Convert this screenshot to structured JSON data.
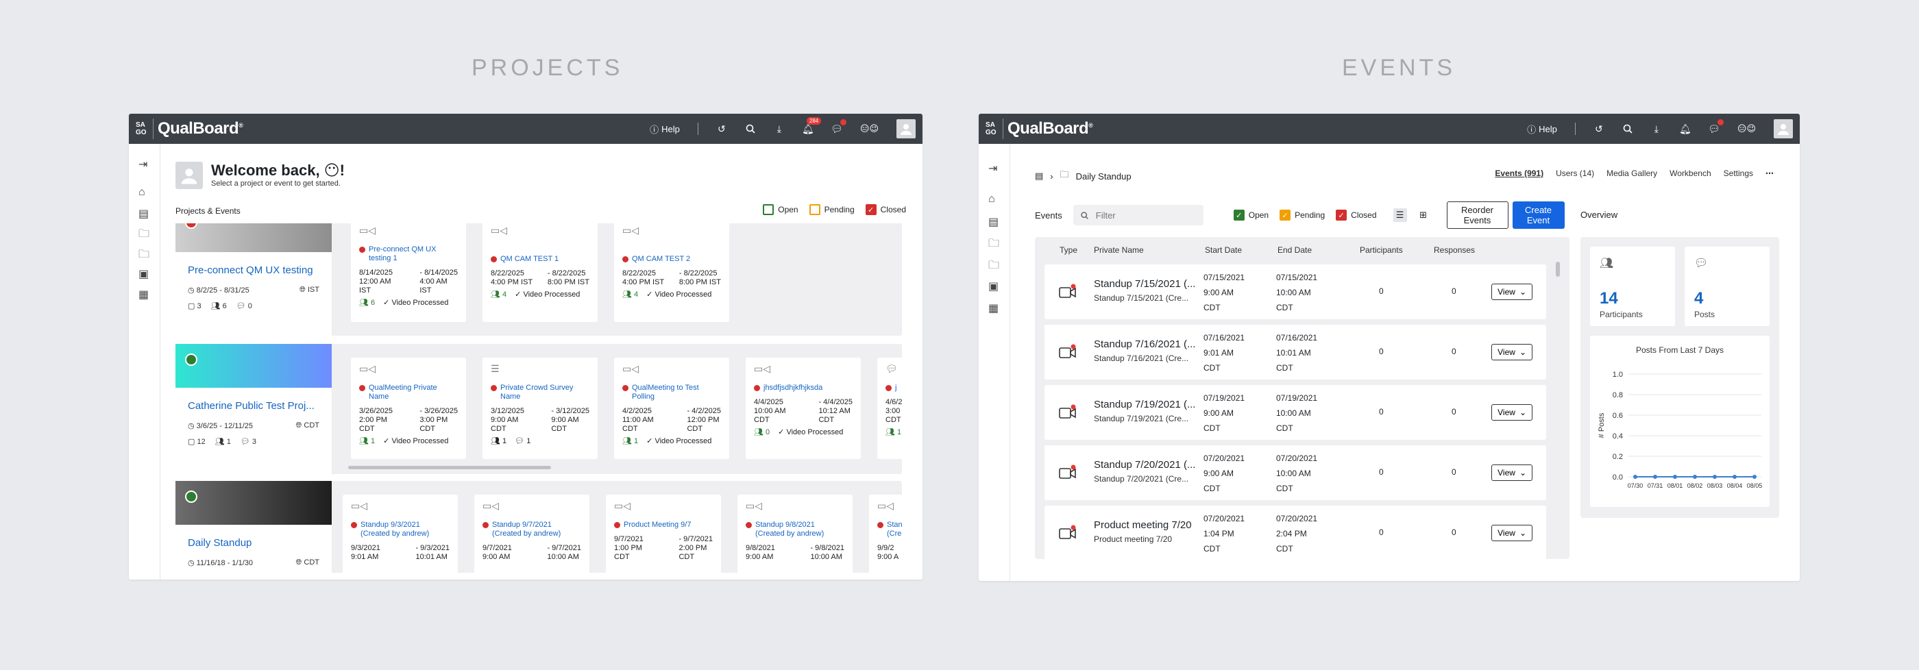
{
  "sections": {
    "projects": "PROJECTS",
    "events": "EVENTS"
  },
  "app": {
    "logo_small": [
      "SA",
      "GO"
    ],
    "logo": "QualBoard",
    "help": "Help",
    "notif_count": "284",
    "emojis": "😑😉"
  },
  "projects_page": {
    "welcome": "Welcome back, 😶!",
    "subtitle": "Select a project or event to get started.",
    "section_label": "Projects & Events",
    "legend": {
      "open": "Open",
      "pending": "Pending",
      "closed": "Closed"
    },
    "projects": [
      {
        "name": "Pre-connect QM UX testing",
        "dates": "8/2/25 - 8/31/25",
        "tz": "IST",
        "counts": [
          "3",
          "6",
          "0"
        ],
        "events": [
          {
            "title": "Pre-connect QM UX testing 1",
            "start": [
              "8/14/2025",
              "12:00 AM",
              "IST"
            ],
            "end": [
              "- 8/14/2025",
              "4:00 AM",
              "IST"
            ],
            "count": "6",
            "status": "Video Processed"
          },
          {
            "title": "QM CAM TEST 1",
            "start": [
              "8/22/2025",
              "4:00 PM IST"
            ],
            "end": [
              "- 8/22/2025",
              "8:00 PM IST"
            ],
            "count": "4",
            "status": "Video Processed"
          },
          {
            "title": "QM CAM TEST 2",
            "start": [
              "8/22/2025",
              "4:00 PM IST"
            ],
            "end": [
              "- 8/22/2025",
              "8:00 PM IST"
            ],
            "count": "4",
            "status": "Video Processed"
          }
        ]
      },
      {
        "name": "Catherine Public Test Proj...",
        "dates": "3/6/25 - 12/11/25",
        "tz": "CDT",
        "counts": [
          "12",
          "1",
          "3"
        ],
        "events": [
          {
            "title": "QualMeeting Private Name",
            "start": [
              "3/26/2025",
              "2:00 PM",
              "CDT"
            ],
            "end": [
              "- 3/26/2025",
              "3:00 PM",
              "CDT"
            ],
            "count": "1",
            "status": "Video Processed"
          },
          {
            "title": "Private Crowd Survey Name",
            "start": [
              "3/12/2025",
              "9:00 AM",
              "CDT"
            ],
            "end": [
              "- 3/12/2025",
              "9:00 AM",
              "CDT"
            ],
            "count": "1",
            "count2": "1",
            "status": ""
          },
          {
            "title": "QualMeeting to Test Polling",
            "start": [
              "4/2/2025",
              "11:00 AM",
              "CDT"
            ],
            "end": [
              "- 4/2/2025",
              "12:00 PM",
              "CDT"
            ],
            "count": "1",
            "status": "Video Processed"
          },
          {
            "title": "jhsdfjsdhjkfhjksda",
            "start": [
              "4/4/2025",
              "10:00 AM",
              "CDT"
            ],
            "end": [
              "- 4/4/2025",
              "10:12 AM",
              "CDT"
            ],
            "count": "0",
            "status": "Video Processed"
          },
          {
            "title": "j",
            "start": [
              "4/6/2",
              "3:00 P",
              "CDT"
            ],
            "end": [
              "",
              "",
              ""
            ],
            "count": "1",
            "status": ""
          }
        ]
      },
      {
        "name": "Daily Standup",
        "dates": "11/16/18 - 1/1/30",
        "tz": "CDT",
        "events": [
          {
            "title": "Standup 9/3/2021 (Created by andrew)",
            "start": [
              "9/3/2021",
              "9:01 AM"
            ],
            "end": [
              "- 9/3/2021",
              "10:01 AM"
            ]
          },
          {
            "title": "Standup 9/7/2021 (Created by andrew)",
            "start": [
              "9/7/2021",
              "9:00 AM"
            ],
            "end": [
              "- 9/7/2021",
              "10:00 AM"
            ]
          },
          {
            "title": "Product Meeting 9/7",
            "start": [
              "9/7/2021",
              "1:00 PM",
              "CDT"
            ],
            "end": [
              "- 9/7/2021",
              "2:00 PM",
              "CDT"
            ]
          },
          {
            "title": "Standup 9/8/2021 (Created by andrew)",
            "start": [
              "9/8/2021",
              "9:00 AM"
            ],
            "end": [
              "- 9/8/2021",
              "10:00 AM"
            ]
          },
          {
            "title": "Stand (Crea",
            "start": [
              "9/9/2",
              "9:00 A"
            ],
            "end": [
              "",
              ""
            ]
          }
        ]
      }
    ]
  },
  "events_page": {
    "breadcrumb": "Daily Standup",
    "tabs": [
      "Events (991)",
      "Users (14)",
      "Media Gallery",
      "Workbench",
      "Settings"
    ],
    "events_label": "Events",
    "filter_placeholder": "Filter",
    "legend": {
      "open": "Open",
      "pending": "Pending",
      "closed": "Closed"
    },
    "reorder": "Reorder Events",
    "create": "Create Event",
    "columns": [
      "Type",
      "Private Name",
      "Start Date",
      "End Date",
      "Participants",
      "Responses"
    ],
    "rows": [
      {
        "name": "Standup 7/15/2021 (...",
        "sub": "Standup 7/15/2021 (Cre...",
        "start": [
          "07/15/2021",
          "9:00 AM",
          "CDT"
        ],
        "end": [
          "07/15/2021",
          "10:00 AM",
          "CDT"
        ],
        "participants": "0",
        "responses": "0",
        "action": "View"
      },
      {
        "name": "Standup 7/16/2021 (...",
        "sub": "Standup 7/16/2021 (Cre...",
        "start": [
          "07/16/2021",
          "9:01 AM",
          "CDT"
        ],
        "end": [
          "07/16/2021",
          "10:01 AM",
          "CDT"
        ],
        "participants": "0",
        "responses": "0",
        "action": "View"
      },
      {
        "name": "Standup 7/19/2021 (...",
        "sub": "Standup 7/19/2021 (Cre...",
        "start": [
          "07/19/2021",
          "9:00 AM",
          "CDT"
        ],
        "end": [
          "07/19/2021",
          "10:00 AM",
          "CDT"
        ],
        "participants": "0",
        "responses": "0",
        "action": "View"
      },
      {
        "name": "Standup 7/20/2021 (...",
        "sub": "Standup 7/20/2021 (Cre...",
        "start": [
          "07/20/2021",
          "9:00 AM",
          "CDT"
        ],
        "end": [
          "07/20/2021",
          "10:00 AM",
          "CDT"
        ],
        "participants": "0",
        "responses": "0",
        "action": "View"
      },
      {
        "name": "Product meeting 7/20",
        "sub": "Product meeting 7/20",
        "start": [
          "07/20/2021",
          "1:04 PM",
          "CDT"
        ],
        "end": [
          "07/20/2021",
          "2:04 PM",
          "CDT"
        ],
        "participants": "0",
        "responses": "0",
        "action": "View"
      }
    ],
    "overview": {
      "label": "Overview",
      "participants_value": "14",
      "participants_label": "Participants",
      "posts_value": "4",
      "posts_label": "Posts"
    }
  },
  "chart_data": {
    "type": "line",
    "title": "Posts From Last 7 Days",
    "ylabel": "# Posts",
    "xlabel": "",
    "categories": [
      "07/30",
      "07/31",
      "08/01",
      "08/02",
      "08/03",
      "08/04",
      "08/05"
    ],
    "values": [
      0,
      0,
      0,
      0,
      0,
      0,
      0
    ],
    "ylim": [
      0,
      1.0
    ],
    "yticks": [
      "1.0",
      "0.8",
      "0.6",
      "0.4",
      "0.2",
      "0.0"
    ],
    "grid": true,
    "color": "#3d7fd0"
  }
}
